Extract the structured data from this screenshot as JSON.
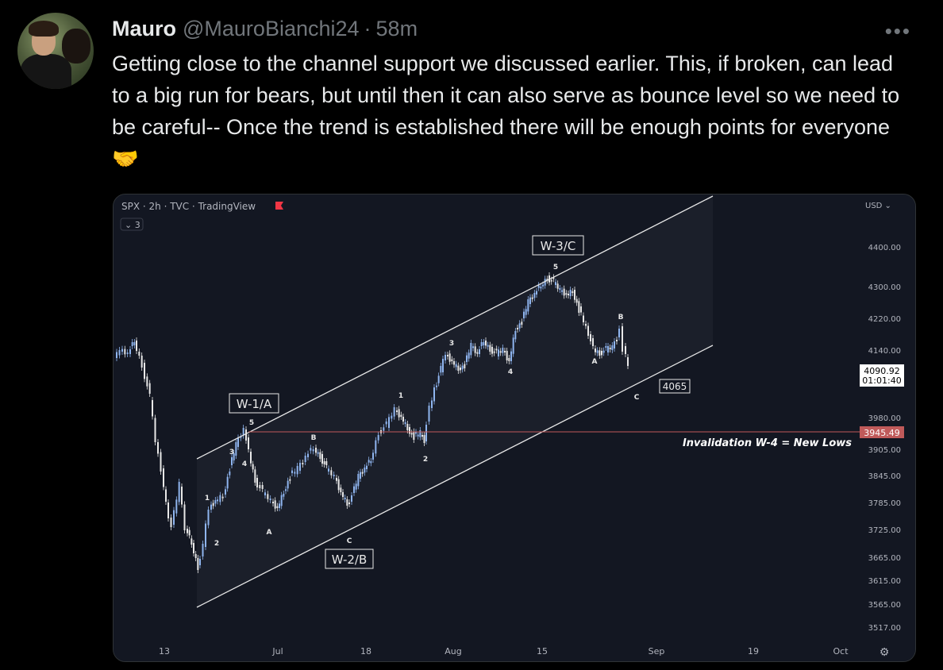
{
  "tweet": {
    "author_name": "Mauro",
    "handle": "@MauroBianchi24",
    "separator": "·",
    "time": "58m",
    "more_label": "•••",
    "text": "Getting close to the channel support we discussed earlier. This, if broken, can lead to a big run for bears, but until then it can also serve as bounce level so we need to be careful-- Once the trend is established there will be enough points for everyone🤝"
  },
  "chart": {
    "symbol_line": "SPX · 2h · TVC · TradingView",
    "collapse_label": "⌄ 3",
    "currency": "USD ⌄",
    "price_ticks": [
      "4400.00",
      "4300.00",
      "4220.00",
      "4140.00",
      "3980.00",
      "3905.00",
      "3845.00",
      "3785.00",
      "3725.00",
      "3665.00",
      "3615.00",
      "3565.00",
      "3517.00"
    ],
    "date_ticks": [
      "13",
      "Jul",
      "18",
      "Aug",
      "15",
      "Sep",
      "19",
      "Oct"
    ],
    "current_price": "4090.92",
    "countdown": "01:01:40",
    "invalidation_price": "3945.49",
    "invalidation_label": "Invalidation W-4 = New Lows",
    "target_label": "4065",
    "wave_boxes": [
      "W-1/A",
      "W-2/B",
      "W-3/C"
    ],
    "wave_labels": [
      "1",
      "2",
      "3",
      "4",
      "5",
      "A",
      "B",
      "C",
      "1",
      "2",
      "3",
      "4",
      "5",
      "A",
      "B",
      "C"
    ],
    "colors": {
      "background": "#131722",
      "candle_up": "#8fb5ef",
      "candle_down": "#e8e8e8",
      "channel": "#e8e8e8",
      "invalidation": "#c05a5a",
      "price_tag": "#ffffff"
    }
  }
}
